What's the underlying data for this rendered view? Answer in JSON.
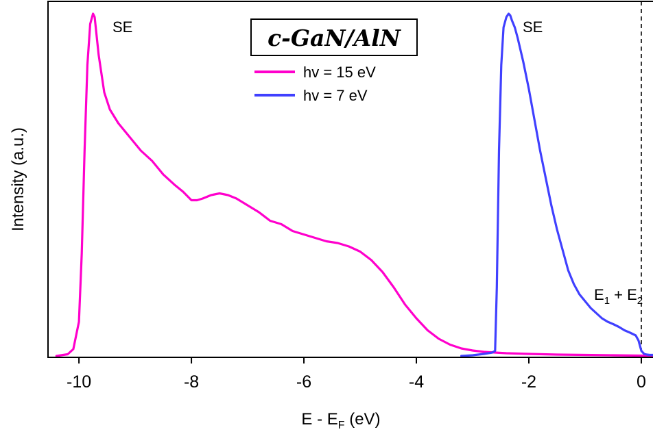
{
  "chart_data": {
    "type": "line",
    "title": "c-GaN/AlN",
    "xlabel": {
      "main": "E - E",
      "sub": "F",
      "tail": " (eV)"
    },
    "ylabel": "Intensity (a.u.)",
    "xlim": [
      -10.55,
      0.22
    ],
    "ylim": [
      0,
      1.0
    ],
    "xticks": [
      -10,
      -8,
      -6,
      -4,
      -2,
      0
    ],
    "xtick_labels": [
      "-10",
      "-8",
      "-6",
      "-4",
      "-2",
      "0"
    ],
    "yticks": [],
    "grid": false,
    "legend_position": "top-center",
    "vline": {
      "x": 0,
      "style": "dashed"
    },
    "annotations": {
      "se_left": "SE",
      "se_right": "SE",
      "energy_label": {
        "e1": "E",
        "e1_sub": "1",
        "plus": " + ",
        "e2": "E",
        "e2_sub": "2"
      }
    },
    "series": [
      {
        "name": "hv = 15 eV",
        "color": "#ff00cc",
        "x": [
          -10.4,
          -10.2,
          -10.1,
          -10.0,
          -9.95,
          -9.9,
          -9.85,
          -9.8,
          -9.75,
          -9.72,
          -9.65,
          -9.55,
          -9.45,
          -9.3,
          -9.1,
          -8.9,
          -8.7,
          -8.5,
          -8.3,
          -8.15,
          -8.0,
          -7.9,
          -7.8,
          -7.65,
          -7.5,
          -7.35,
          -7.2,
          -7.0,
          -6.8,
          -6.6,
          -6.4,
          -6.2,
          -6.0,
          -5.8,
          -5.6,
          -5.4,
          -5.2,
          -5.0,
          -4.8,
          -4.6,
          -4.4,
          -4.2,
          -4.0,
          -3.8,
          -3.6,
          -3.4,
          -3.2,
          -3.0,
          -2.8,
          -2.6,
          -2.4,
          -2.0,
          -1.5,
          -1.0,
          -0.5,
          0.0,
          0.1,
          0.22
        ],
        "y": [
          0.0,
          0.005,
          0.02,
          0.1,
          0.3,
          0.6,
          0.85,
          0.97,
          1.0,
          0.99,
          0.88,
          0.77,
          0.72,
          0.68,
          0.64,
          0.6,
          0.57,
          0.53,
          0.5,
          0.48,
          0.455,
          0.455,
          0.46,
          0.47,
          0.475,
          0.47,
          0.46,
          0.44,
          0.42,
          0.395,
          0.385,
          0.365,
          0.355,
          0.345,
          0.335,
          0.33,
          0.32,
          0.305,
          0.28,
          0.245,
          0.2,
          0.15,
          0.11,
          0.075,
          0.05,
          0.033,
          0.022,
          0.016,
          0.012,
          0.01,
          0.008,
          0.006,
          0.004,
          0.003,
          0.002,
          0.001,
          0.001,
          0.001
        ]
      },
      {
        "name": "hv = 7 eV",
        "color": "#4040ff",
        "x": [
          -3.2,
          -3.0,
          -2.8,
          -2.65,
          -2.6,
          -2.57,
          -2.53,
          -2.49,
          -2.45,
          -2.4,
          -2.36,
          -2.33,
          -2.3,
          -2.25,
          -2.2,
          -2.1,
          -2.0,
          -1.9,
          -1.8,
          -1.7,
          -1.6,
          -1.5,
          -1.4,
          -1.3,
          -1.2,
          -1.1,
          -1.0,
          -0.9,
          -0.8,
          -0.7,
          -0.6,
          -0.5,
          -0.4,
          -0.3,
          -0.2,
          -0.1,
          -0.05,
          0.0,
          0.05,
          0.1,
          0.15,
          0.22
        ],
        "y": [
          0.0,
          0.002,
          0.006,
          0.01,
          0.015,
          0.2,
          0.6,
          0.85,
          0.96,
          0.99,
          1.0,
          0.995,
          0.98,
          0.96,
          0.93,
          0.86,
          0.78,
          0.69,
          0.6,
          0.52,
          0.44,
          0.37,
          0.31,
          0.25,
          0.21,
          0.18,
          0.16,
          0.14,
          0.125,
          0.11,
          0.1,
          0.093,
          0.085,
          0.075,
          0.068,
          0.06,
          0.045,
          0.015,
          0.006,
          0.004,
          0.003,
          0.003
        ]
      }
    ]
  }
}
